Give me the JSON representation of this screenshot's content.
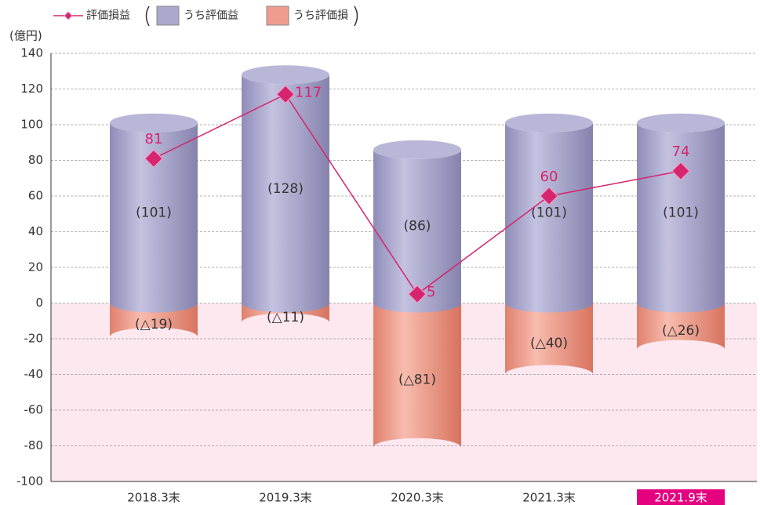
{
  "chart_data": {
    "type": "cylinder_bar_line",
    "unit_label": "(億円)",
    "categories": [
      "2018.3末",
      "2019.3末",
      "2020.3末",
      "2021.3末",
      "2021.9末"
    ],
    "series": [
      {
        "name": "うち評価益",
        "color": "#aaa8cc",
        "values": [
          101,
          128,
          86,
          101,
          101
        ],
        "value_labels": [
          "(101)",
          "(128)",
          "(86)",
          "(101)",
          "(101)"
        ]
      },
      {
        "name": "うち評価損",
        "color": "#ef9c8e",
        "values": [
          -19,
          -11,
          -81,
          -40,
          -26
        ],
        "value_labels": [
          "(△19)",
          "(△11)",
          "(△81)",
          "(△40)",
          "(△26)"
        ]
      },
      {
        "name": "評価損益",
        "color": "#d6246e",
        "values": [
          81,
          117,
          5,
          60,
          74
        ]
      }
    ],
    "ylim": [
      -100,
      140
    ],
    "yticks": [
      -100,
      -80,
      -60,
      -40,
      -20,
      0,
      20,
      40,
      60,
      80,
      100,
      120,
      140
    ],
    "grid": true,
    "negative_background": "#fde8f0",
    "highlight": {
      "index": 4,
      "color": "#e4007f"
    }
  }
}
